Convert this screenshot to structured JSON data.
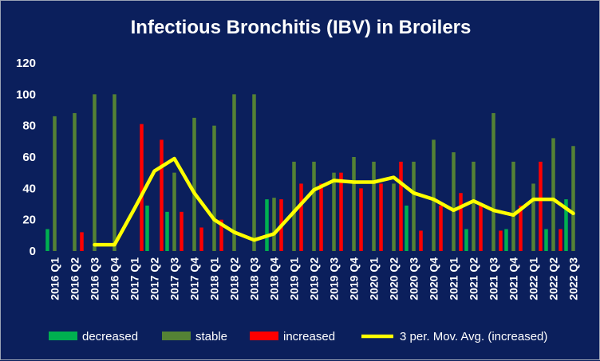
{
  "chart_data": {
    "type": "bar",
    "title": "Infectious Bronchitis (IBV) in Broilers",
    "xlabel": "",
    "ylabel": "",
    "ylim": [
      0,
      120
    ],
    "yticks": [
      0,
      20,
      40,
      60,
      80,
      100,
      120
    ],
    "grid": false,
    "legend_position": "bottom",
    "categories": [
      "2016 Q1",
      "2016 Q2",
      "2016 Q3",
      "2016 Q4",
      "2017 Q1",
      "2017 Q2",
      "2017 Q3",
      "2017 Q4",
      "2018 Q1",
      "2018 Q2",
      "2018 Q3",
      "2018 Q4",
      "2019 Q1",
      "2019 Q2",
      "2019 Q3",
      "2019 Q4",
      "2020 Q1",
      "2020 Q2",
      "2020 Q3",
      "2020 Q4",
      "2021 Q1",
      "2021 Q2",
      "2021 Q3",
      "2021 Q4",
      "2022 Q1",
      "2022 Q2",
      "2022 Q3"
    ],
    "series": [
      {
        "name": "decreased",
        "type": "bar",
        "color": "#00b050",
        "values": [
          14,
          0,
          0,
          0,
          0,
          29,
          25,
          0,
          0,
          0,
          0,
          33,
          0,
          0,
          0,
          0,
          0,
          0,
          29,
          0,
          0,
          14,
          0,
          14,
          0,
          14,
          33
        ]
      },
      {
        "name": "stable",
        "type": "bar",
        "color": "#548235",
        "values": [
          86,
          88,
          100,
          100,
          0,
          0,
          50,
          85,
          80,
          100,
          100,
          34,
          57,
          57,
          50,
          60,
          57,
          43,
          57,
          71,
          63,
          57,
          88,
          57,
          43,
          72,
          67
        ]
      },
      {
        "name": "increased",
        "type": "bar",
        "color": "#ff0000",
        "values": [
          0,
          12,
          0,
          0,
          81,
          71,
          25,
          15,
          20,
          0,
          0,
          33,
          43,
          43,
          50,
          40,
          43,
          57,
          13,
          29,
          37,
          29,
          13,
          29,
          57,
          14,
          0
        ]
      },
      {
        "name": "3 per. Mov. Avg. (increased)",
        "type": "line",
        "color": "#ffff00",
        "values": [
          null,
          null,
          4,
          4,
          27,
          51,
          59,
          37,
          20,
          12,
          7,
          11,
          25,
          39,
          45,
          44,
          44,
          47,
          37,
          33,
          26,
          32,
          26,
          23,
          33,
          33,
          24
        ]
      }
    ]
  }
}
